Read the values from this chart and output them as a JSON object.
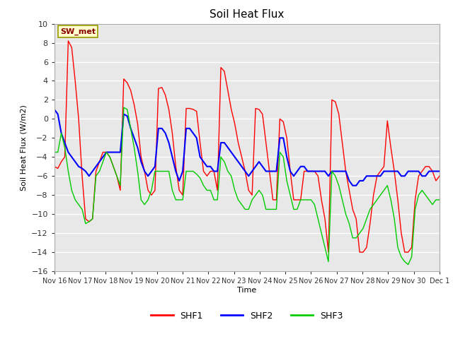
{
  "title": "Soil Heat Flux",
  "ylabel": "Soil Heat Flux (W/m2)",
  "xlabel": "Time",
  "ylim": [
    -16,
    10
  ],
  "background_color": "#ffffff",
  "plot_bg_color": "#e8e8e8",
  "grid_color": "#ffffff",
  "annotation_text": "SW_met",
  "annotation_bg": "#ffffcc",
  "annotation_border": "#999900",
  "annotation_text_color": "#880000",
  "colors": {
    "SHF1": "#ff0000",
    "SHF2": "#0000ff",
    "SHF3": "#00cc00"
  },
  "x_tick_labels": [
    "Nov 16",
    "Nov 17",
    "Nov 18",
    "Nov 19",
    "Nov 20",
    "Nov 21",
    "Nov 22",
    "Nov 23",
    "Nov 24",
    "Nov 25",
    "Nov 26",
    "Nov 27",
    "Nov 28",
    "Nov 29",
    "Nov 30",
    "Dec 1"
  ],
  "SHF1": [
    -5.0,
    -5.2,
    -4.5,
    -4.0,
    8.2,
    7.5,
    4.0,
    0.0,
    -6.0,
    -10.5,
    -10.8,
    -10.5,
    -5.5,
    -4.5,
    -3.5,
    -3.5,
    -4.0,
    -5.0,
    -6.0,
    -7.5,
    4.2,
    3.8,
    3.0,
    1.5,
    -0.5,
    -4.0,
    -5.5,
    -7.5,
    -8.0,
    -7.5,
    3.2,
    3.3,
    2.5,
    1.0,
    -1.5,
    -5.0,
    -7.5,
    -8.0,
    1.1,
    1.1,
    1.0,
    0.8,
    -2.5,
    -5.5,
    -6.0,
    -5.5,
    -5.5,
    -7.5,
    5.4,
    5.0,
    3.0,
    1.0,
    -0.5,
    -2.5,
    -4.0,
    -5.5,
    -7.5,
    -8.0,
    1.1,
    1.0,
    0.5,
    -2.5,
    -5.5,
    -8.5,
    -8.5,
    0.0,
    -0.3,
    -2.0,
    -5.5,
    -8.5,
    -8.5,
    -8.5,
    -5.5,
    -5.5,
    -5.5,
    -5.5,
    -6.0,
    -8.5,
    -10.5,
    -14.0,
    2.0,
    1.8,
    0.5,
    -2.5,
    -5.5,
    -7.5,
    -9.5,
    -10.5,
    -14.0,
    -14.0,
    -13.5,
    -11.0,
    -8.0,
    -6.0,
    -5.5,
    -5.0,
    -0.2,
    -3.0,
    -5.5,
    -8.5,
    -12.0,
    -14.0,
    -14.0,
    -13.5,
    -8.5,
    -6.0,
    -5.5,
    -5.0,
    -5.0,
    -5.5,
    -6.5,
    -6.0
  ],
  "SHF2": [
    1.0,
    0.5,
    -1.5,
    -2.5,
    -3.5,
    -4.0,
    -4.5,
    -5.0,
    -5.2,
    -5.5,
    -6.0,
    -5.5,
    -5.0,
    -4.5,
    -4.0,
    -3.5,
    -3.5,
    -3.5,
    -3.5,
    -3.5,
    0.5,
    0.3,
    -1.0,
    -2.0,
    -3.0,
    -4.5,
    -5.5,
    -6.0,
    -5.5,
    -5.0,
    -1.0,
    -1.0,
    -1.5,
    -2.5,
    -4.0,
    -5.5,
    -6.5,
    -5.5,
    -1.0,
    -1.0,
    -1.5,
    -2.0,
    -4.0,
    -4.5,
    -5.0,
    -5.0,
    -5.5,
    -5.5,
    -2.5,
    -2.5,
    -3.0,
    -3.5,
    -4.0,
    -4.5,
    -5.0,
    -5.5,
    -6.0,
    -5.5,
    -5.0,
    -4.5,
    -5.0,
    -5.5,
    -5.5,
    -5.5,
    -5.5,
    -2.0,
    -2.0,
    -4.0,
    -5.5,
    -6.0,
    -5.5,
    -5.0,
    -5.0,
    -5.5,
    -5.5,
    -5.5,
    -5.5,
    -5.5,
    -5.5,
    -6.0,
    -5.5,
    -5.5,
    -5.5,
    -5.5,
    -5.5,
    -6.5,
    -7.0,
    -7.0,
    -6.5,
    -6.5,
    -6.0,
    -6.0,
    -6.0,
    -6.0,
    -6.0,
    -5.5,
    -5.5,
    -5.5,
    -5.5,
    -5.5,
    -6.0,
    -6.0,
    -5.5,
    -5.5,
    -5.5,
    -5.5,
    -6.0,
    -6.0,
    -5.5,
    -5.5,
    -5.5,
    -5.5
  ],
  "SHF3": [
    -3.5,
    -3.5,
    -1.5,
    -3.0,
    -5.5,
    -7.5,
    -8.5,
    -9.0,
    -9.5,
    -11.0,
    -10.8,
    -10.5,
    -6.0,
    -5.5,
    -4.5,
    -3.5,
    -4.0,
    -5.0,
    -6.0,
    -7.0,
    1.2,
    1.0,
    -1.0,
    -3.0,
    -5.5,
    -8.5,
    -9.0,
    -8.5,
    -7.5,
    -5.5,
    -5.5,
    -5.5,
    -5.5,
    -5.5,
    -7.5,
    -8.5,
    -8.5,
    -8.5,
    -5.5,
    -5.5,
    -5.5,
    -5.8,
    -6.2,
    -7.0,
    -7.5,
    -7.5,
    -8.5,
    -8.5,
    -4.0,
    -4.5,
    -5.5,
    -6.0,
    -7.5,
    -8.5,
    -9.0,
    -9.5,
    -9.5,
    -8.5,
    -8.0,
    -7.5,
    -8.0,
    -9.5,
    -9.5,
    -9.5,
    -9.5,
    -3.5,
    -4.0,
    -6.5,
    -8.0,
    -9.5,
    -9.5,
    -8.5,
    -8.5,
    -8.5,
    -8.5,
    -9.0,
    -10.5,
    -12.0,
    -13.5,
    -15.0,
    -5.5,
    -6.0,
    -7.0,
    -8.5,
    -10.0,
    -11.0,
    -12.5,
    -12.5,
    -12.0,
    -11.5,
    -10.5,
    -9.5,
    -9.0,
    -8.5,
    -8.0,
    -7.5,
    -7.0,
    -8.5,
    -10.5,
    -13.5,
    -14.5,
    -15.0,
    -15.3,
    -14.5,
    -9.5,
    -8.0,
    -7.5,
    -8.0,
    -8.5,
    -9.0,
    -8.5,
    -8.5
  ]
}
